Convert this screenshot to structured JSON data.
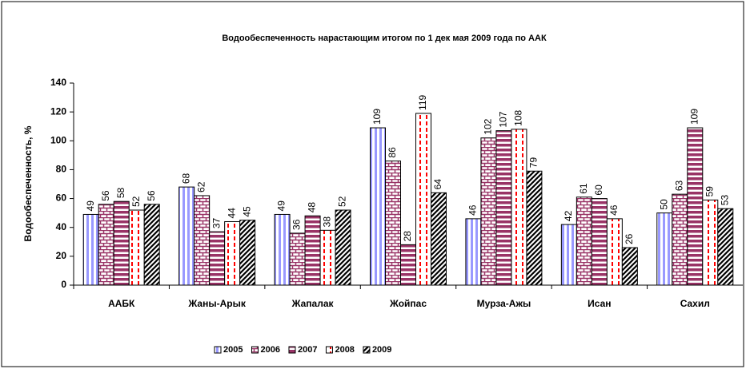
{
  "chart_data": {
    "type": "bar",
    "title": "Водообеспеченность нарастающим итогом по 1 дек мая 2009 года по ААК",
    "y_label": "Водообеспеченность, %",
    "categories": [
      "ААБК",
      "Жаны-Арык",
      "Жапалак",
      "Жойпас",
      "Мурза-Ажы",
      "Исан",
      "Сахил"
    ],
    "series": [
      {
        "name": "2005",
        "color": "#9999ff",
        "values": [
          49,
          68,
          49,
          109,
          46,
          42,
          50
        ]
      },
      {
        "name": "2006",
        "color": "#993366",
        "values": [
          56,
          62,
          36,
          86,
          102,
          61,
          63
        ]
      },
      {
        "name": "2007",
        "color": "#993366",
        "values": [
          58,
          37,
          48,
          28,
          107,
          60,
          109
        ]
      },
      {
        "name": "2008",
        "color": "#ff0000",
        "values": [
          52,
          44,
          38,
          119,
          108,
          46,
          59
        ]
      },
      {
        "name": "2009",
        "color": "#000000",
        "values": [
          56,
          45,
          52,
          64,
          79,
          26,
          53
        ]
      }
    ],
    "ylim": [
      0,
      140
    ],
    "yticks": [
      0,
      20,
      40,
      60,
      80,
      100,
      120,
      140
    ],
    "legend": "bottom"
  }
}
